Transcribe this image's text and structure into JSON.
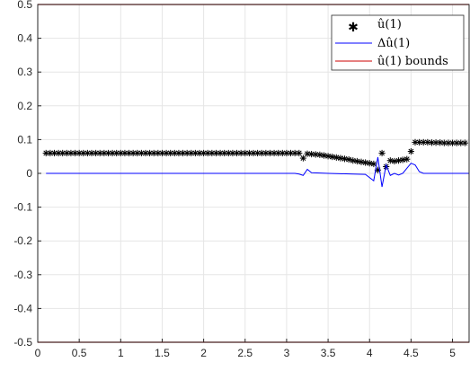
{
  "chart_data": {
    "type": "line",
    "title": "",
    "xlabel": "",
    "ylabel": "",
    "xlim": [
      0,
      5.2
    ],
    "ylim": [
      -0.5,
      0.5
    ],
    "xticks": [
      0,
      0.5,
      1,
      1.5,
      2,
      2.5,
      3,
      3.5,
      4,
      4.5,
      5
    ],
    "xtick_labels": [
      "0",
      "0.5",
      "1",
      "1.5",
      "2",
      "2.5",
      "3",
      "3.5",
      "4",
      "4.5",
      "5"
    ],
    "yticks": [
      -0.5,
      -0.4,
      -0.3,
      -0.2,
      -0.1,
      0,
      0.1,
      0.2,
      0.3,
      0.4,
      0.5
    ],
    "ytick_labels": [
      "-0.5",
      "-0.4",
      "-0.3",
      "-0.2",
      "-0.1",
      "0",
      "0.1",
      "0.2",
      "0.3",
      "0.4",
      "0.5"
    ],
    "grid": true,
    "legend_position": "top-right",
    "series": [
      {
        "name": "û(1)",
        "style": "markers",
        "marker": "asterisk",
        "color": "#000000",
        "x": [
          0.1,
          0.15,
          0.2,
          0.25,
          0.3,
          0.35,
          0.4,
          0.45,
          0.5,
          0.55,
          0.6,
          0.65,
          0.7,
          0.75,
          0.8,
          0.85,
          0.9,
          0.95,
          1.0,
          1.05,
          1.1,
          1.15,
          1.2,
          1.25,
          1.3,
          1.35,
          1.4,
          1.45,
          1.5,
          1.55,
          1.6,
          1.65,
          1.7,
          1.75,
          1.8,
          1.85,
          1.9,
          1.95,
          2.0,
          2.05,
          2.1,
          2.15,
          2.2,
          2.25,
          2.3,
          2.35,
          2.4,
          2.45,
          2.5,
          2.55,
          2.6,
          2.65,
          2.7,
          2.75,
          2.8,
          2.85,
          2.9,
          2.95,
          3.0,
          3.05,
          3.1,
          3.15,
          3.2,
          3.25,
          3.3,
          3.35,
          3.4,
          3.45,
          3.5,
          3.55,
          3.6,
          3.65,
          3.7,
          3.75,
          3.8,
          3.85,
          3.9,
          3.95,
          4.0,
          4.05,
          4.1,
          4.15,
          4.2,
          4.25,
          4.3,
          4.35,
          4.4,
          4.45,
          4.5,
          4.55,
          4.6,
          4.65,
          4.7,
          4.75,
          4.8,
          4.85,
          4.9,
          4.95,
          5.0,
          5.05,
          5.1,
          5.15
        ],
        "values": [
          0.06,
          0.06,
          0.06,
          0.06,
          0.06,
          0.06,
          0.06,
          0.06,
          0.06,
          0.06,
          0.06,
          0.06,
          0.06,
          0.06,
          0.06,
          0.06,
          0.06,
          0.06,
          0.06,
          0.06,
          0.06,
          0.06,
          0.06,
          0.06,
          0.06,
          0.06,
          0.06,
          0.06,
          0.06,
          0.06,
          0.06,
          0.06,
          0.06,
          0.06,
          0.06,
          0.06,
          0.06,
          0.06,
          0.06,
          0.06,
          0.06,
          0.06,
          0.06,
          0.06,
          0.06,
          0.06,
          0.06,
          0.06,
          0.06,
          0.06,
          0.06,
          0.06,
          0.06,
          0.06,
          0.06,
          0.06,
          0.06,
          0.06,
          0.06,
          0.06,
          0.06,
          0.06,
          0.045,
          0.058,
          0.057,
          0.056,
          0.055,
          0.053,
          0.051,
          0.049,
          0.047,
          0.045,
          0.043,
          0.041,
          0.038,
          0.036,
          0.034,
          0.032,
          0.03,
          0.028,
          0.01,
          0.06,
          0.02,
          0.038,
          0.036,
          0.038,
          0.04,
          0.042,
          0.065,
          0.092,
          0.092,
          0.092,
          0.092,
          0.091,
          0.091,
          0.091,
          0.09,
          0.09,
          0.09,
          0.09,
          0.09,
          0.09
        ]
      },
      {
        "name": "Δû(1)",
        "style": "line",
        "color": "#0000ff",
        "x": [
          0.1,
          3.0,
          3.1,
          3.15,
          3.2,
          3.25,
          3.3,
          3.5,
          3.8,
          3.95,
          4.05,
          4.1,
          4.15,
          4.2,
          4.25,
          4.3,
          4.35,
          4.4,
          4.45,
          4.5,
          4.55,
          4.6,
          4.65,
          5.2
        ],
        "values": [
          0,
          0,
          0,
          -0.002,
          -0.006,
          0.012,
          0.002,
          0,
          -0.002,
          -0.003,
          -0.022,
          0.048,
          -0.04,
          0.025,
          -0.006,
          0.0,
          -0.005,
          0.0,
          0.015,
          0.03,
          0.025,
          0.005,
          0.0,
          0.0
        ]
      },
      {
        "name": "û(1) bounds",
        "style": "line",
        "color": "#cc0000",
        "x": [
          0,
          5.2
        ],
        "upper": [
          0.5,
          0.5
        ],
        "lower": [
          -0.5,
          -0.5
        ]
      }
    ]
  },
  "legend": {
    "items": [
      {
        "label": "û(1)",
        "icon": "asterisk-marker-icon"
      },
      {
        "label": "Δû(1)",
        "icon": "blue-line-icon"
      },
      {
        "label": "û(1) bounds",
        "icon": "red-line-icon"
      }
    ]
  }
}
